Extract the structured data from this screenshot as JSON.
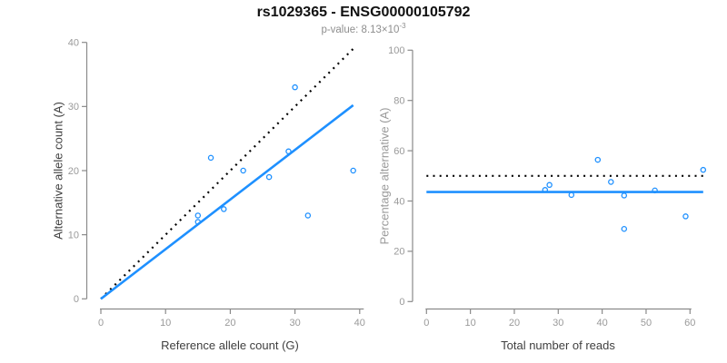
{
  "header": {
    "title": "rs1029365 - ENSG00000105792",
    "pvalue_prefix": "p-value: ",
    "pvalue_base": "8.13×10",
    "pvalue_exponent": "-3"
  },
  "colors": {
    "accent_blue": "#1E90FF",
    "reference_black": "#000000",
    "axis_gray": "#8a8a8a",
    "tick_label_gray": "#9a9a9a"
  },
  "chart_data": [
    {
      "type": "scatter",
      "title": "",
      "xlabel": "Reference allele count (G)",
      "ylabel": "Alternative allele count (A)",
      "xlim": [
        0,
        40
      ],
      "ylim": [
        0,
        40
      ],
      "xticks": [
        0,
        10,
        20,
        30,
        40
      ],
      "yticks": [
        0,
        10,
        20,
        30,
        40
      ],
      "grid": "off",
      "legend": "none",
      "marker": "open-circle",
      "marker_color": "#1E90FF",
      "points": [
        [
          15,
          12
        ],
        [
          15,
          13
        ],
        [
          17,
          22
        ],
        [
          19,
          14
        ],
        [
          22,
          20
        ],
        [
          26,
          19
        ],
        [
          29,
          23
        ],
        [
          30,
          33
        ],
        [
          32,
          13
        ],
        [
          39,
          20
        ]
      ],
      "lines": [
        {
          "name": "identity-line",
          "style": "dotted",
          "color": "#000000",
          "x1": 0,
          "y1": 0,
          "x2": 39,
          "y2": 39
        },
        {
          "name": "regression-line",
          "style": "solid",
          "color": "#1E90FF",
          "x1": 0,
          "y1": 0,
          "x2": 39,
          "y2": 30.2
        }
      ]
    },
    {
      "type": "scatter",
      "title": "",
      "xlabel": "Total number of reads",
      "ylabel": "Percentage alternative (A)",
      "xlim": [
        0,
        63
      ],
      "ylim": [
        0,
        100
      ],
      "xticks": [
        0,
        10,
        20,
        30,
        40,
        50,
        60
      ],
      "yticks": [
        0,
        20,
        40,
        60,
        80,
        100
      ],
      "grid": "off",
      "legend": "none",
      "marker": "open-circle",
      "marker_color": "#1E90FF",
      "points": [
        [
          27,
          44.4
        ],
        [
          28,
          46.4
        ],
        [
          33,
          42.4
        ],
        [
          39,
          56.4
        ],
        [
          42,
          47.6
        ],
        [
          45,
          42.2
        ],
        [
          45,
          28.9
        ],
        [
          52,
          44.2
        ],
        [
          59,
          33.9
        ],
        [
          63,
          52.4
        ]
      ],
      "lines": [
        {
          "name": "expected-50pct-line",
          "style": "dotted",
          "color": "#000000",
          "x1": 0,
          "y1": 50,
          "x2": 63,
          "y2": 50
        },
        {
          "name": "mean-percentage-line",
          "style": "solid",
          "color": "#1E90FF",
          "x1": 0,
          "y1": 43.6,
          "x2": 63,
          "y2": 43.6
        }
      ]
    }
  ]
}
